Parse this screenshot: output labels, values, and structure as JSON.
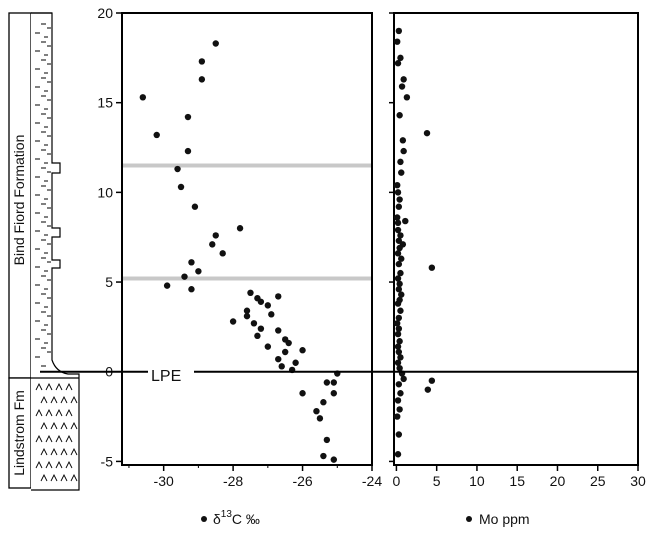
{
  "chart_data": [
    {
      "type": "scatter",
      "xlabel": "δ13C ‰",
      "xlabel_parts": {
        "delta": "δ",
        "superscript": "13",
        "main": "C ‰"
      },
      "xlim": [
        -31.2,
        -24
      ],
      "ylim": [
        -5.2,
        20
      ],
      "xticks": [
        -30,
        -28,
        -26,
        -24
      ],
      "yticks": [
        -5,
        0,
        5,
        10,
        15,
        20
      ],
      "grid": false,
      "legend": "bottom",
      "points": [
        {
          "x": -28.5,
          "y": 18.3
        },
        {
          "x": -28.9,
          "y": 17.3
        },
        {
          "x": -28.9,
          "y": 16.3
        },
        {
          "x": -30.6,
          "y": 15.3
        },
        {
          "x": -29.3,
          "y": 14.2
        },
        {
          "x": -30.2,
          "y": 13.2
        },
        {
          "x": -29.3,
          "y": 12.3
        },
        {
          "x": -29.6,
          "y": 11.3
        },
        {
          "x": -29.5,
          "y": 10.3
        },
        {
          "x": -29.1,
          "y": 9.2
        },
        {
          "x": -27.8,
          "y": 8.0
        },
        {
          "x": -28.5,
          "y": 7.6
        },
        {
          "x": -28.6,
          "y": 7.1
        },
        {
          "x": -28.3,
          "y": 6.6
        },
        {
          "x": -29.2,
          "y": 6.1
        },
        {
          "x": -29.0,
          "y": 5.6
        },
        {
          "x": -29.4,
          "y": 5.3
        },
        {
          "x": -29.9,
          "y": 4.8
        },
        {
          "x": -29.2,
          "y": 4.6
        },
        {
          "x": -27.5,
          "y": 4.4
        },
        {
          "x": -27.3,
          "y": 4.1
        },
        {
          "x": -26.7,
          "y": 4.2
        },
        {
          "x": -27.2,
          "y": 3.9
        },
        {
          "x": -27.0,
          "y": 3.7
        },
        {
          "x": -27.6,
          "y": 3.4
        },
        {
          "x": -27.6,
          "y": 3.1
        },
        {
          "x": -26.9,
          "y": 3.2
        },
        {
          "x": -28.0,
          "y": 2.8
        },
        {
          "x": -27.4,
          "y": 2.7
        },
        {
          "x": -26.7,
          "y": 2.3
        },
        {
          "x": -27.2,
          "y": 2.4
        },
        {
          "x": -26.5,
          "y": 1.8
        },
        {
          "x": -27.3,
          "y": 2.0
        },
        {
          "x": -26.4,
          "y": 1.6
        },
        {
          "x": -27.0,
          "y": 1.4
        },
        {
          "x": -26.5,
          "y": 1.1
        },
        {
          "x": -26.0,
          "y": 1.2
        },
        {
          "x": -26.7,
          "y": 0.7
        },
        {
          "x": -26.2,
          "y": 0.5
        },
        {
          "x": -26.6,
          "y": 0.3
        },
        {
          "x": -26.3,
          "y": 0.1
        },
        {
          "x": -25.0,
          "y": -0.1
        },
        {
          "x": -25.1,
          "y": -0.6
        },
        {
          "x": -25.3,
          "y": -0.6
        },
        {
          "x": -26.0,
          "y": -1.2
        },
        {
          "x": -25.1,
          "y": -1.2
        },
        {
          "x": -25.4,
          "y": -1.7
        },
        {
          "x": -25.6,
          "y": -2.2
        },
        {
          "x": -25.5,
          "y": -2.6
        },
        {
          "x": -25.3,
          "y": -3.8
        },
        {
          "x": -25.4,
          "y": -4.7
        },
        {
          "x": -25.1,
          "y": -4.9
        }
      ]
    },
    {
      "type": "scatter",
      "xlabel": "Mo ppm",
      "xlim": [
        -0.3,
        30
      ],
      "ylim": [
        -5.2,
        20
      ],
      "xticks": [
        0,
        5,
        10,
        15,
        20,
        25,
        30
      ],
      "grid": false,
      "legend": "bottom",
      "points": [
        {
          "x": 0.3,
          "y": 19.0
        },
        {
          "x": 0.1,
          "y": 18.4
        },
        {
          "x": 0.5,
          "y": 17.5
        },
        {
          "x": 0.2,
          "y": 17.2
        },
        {
          "x": 0.9,
          "y": 16.3
        },
        {
          "x": 0.7,
          "y": 15.9
        },
        {
          "x": 1.3,
          "y": 15.3
        },
        {
          "x": 0.4,
          "y": 14.3
        },
        {
          "x": 3.8,
          "y": 13.3
        },
        {
          "x": 0.8,
          "y": 12.9
        },
        {
          "x": 0.9,
          "y": 12.3
        },
        {
          "x": 0.5,
          "y": 11.7
        },
        {
          "x": 0.6,
          "y": 11.1
        },
        {
          "x": 0.1,
          "y": 10.4
        },
        {
          "x": 0.2,
          "y": 10.0
        },
        {
          "x": 0.4,
          "y": 9.6
        },
        {
          "x": 0.3,
          "y": 9.2
        },
        {
          "x": 0.1,
          "y": 8.6
        },
        {
          "x": 0.2,
          "y": 8.3
        },
        {
          "x": 1.1,
          "y": 8.4
        },
        {
          "x": 0.2,
          "y": 7.9
        },
        {
          "x": 0.5,
          "y": 7.6
        },
        {
          "x": 0.3,
          "y": 7.3
        },
        {
          "x": 0.8,
          "y": 7.1
        },
        {
          "x": 0.4,
          "y": 6.9
        },
        {
          "x": 0.2,
          "y": 6.6
        },
        {
          "x": 0.6,
          "y": 6.3
        },
        {
          "x": 0.3,
          "y": 6.0
        },
        {
          "x": 4.4,
          "y": 5.8
        },
        {
          "x": 0.5,
          "y": 5.5
        },
        {
          "x": 0.2,
          "y": 5.2
        },
        {
          "x": 0.4,
          "y": 4.9
        },
        {
          "x": 0.3,
          "y": 4.6
        },
        {
          "x": 0.6,
          "y": 4.3
        },
        {
          "x": 0.4,
          "y": 4.0
        },
        {
          "x": 0.2,
          "y": 3.8
        },
        {
          "x": 0.5,
          "y": 3.4
        },
        {
          "x": 0.3,
          "y": 3.0
        },
        {
          "x": 0.1,
          "y": 2.7
        },
        {
          "x": 0.3,
          "y": 2.4
        },
        {
          "x": 0.2,
          "y": 2.1
        },
        {
          "x": 0.4,
          "y": 1.7
        },
        {
          "x": 0.2,
          "y": 1.4
        },
        {
          "x": 0.3,
          "y": 1.1
        },
        {
          "x": 0.5,
          "y": 0.8
        },
        {
          "x": 0.2,
          "y": 0.5
        },
        {
          "x": 0.4,
          "y": 0.2
        },
        {
          "x": 0.7,
          "y": -0.1
        },
        {
          "x": 0.9,
          "y": -0.4
        },
        {
          "x": 4.4,
          "y": -0.5
        },
        {
          "x": 3.9,
          "y": -1.0
        },
        {
          "x": 0.3,
          "y": -0.7
        },
        {
          "x": 0.5,
          "y": -1.2
        },
        {
          "x": 0.2,
          "y": -1.6
        },
        {
          "x": 0.4,
          "y": -2.1
        },
        {
          "x": 0.1,
          "y": -2.5
        },
        {
          "x": 0.3,
          "y": -3.5
        },
        {
          "x": 0.2,
          "y": -4.6
        }
      ]
    }
  ],
  "reference_lines": {
    "lpe": {
      "y": 0,
      "label": "LPE",
      "color": "#000000"
    },
    "gray_lines": [
      {
        "y": 11.5
      },
      {
        "y": 5.2
      }
    ],
    "gray_color": "#c8c8c8"
  },
  "strat_column": {
    "upper_unit": "Bind Fiord Formation",
    "lower_unit": "Lindstrom Fm"
  },
  "colors": {
    "points": "#111111",
    "axes": "#000000"
  }
}
